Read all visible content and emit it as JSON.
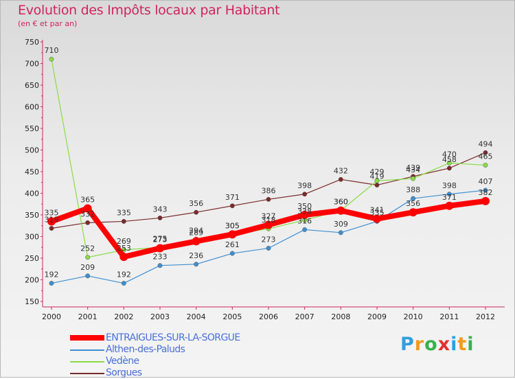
{
  "title": "Evolution des Impôts locaux par Habitant",
  "subtitle": "(en € et par an)",
  "logo": {
    "text": "Proxiti",
    "letters": [
      {
        "ch": "P",
        "color": "#2f9fe0"
      },
      {
        "ch": "r",
        "color": "#f29a1f"
      },
      {
        "ch": "o",
        "color": "#37b24d"
      },
      {
        "ch": "x",
        "color": "#e0312e"
      },
      {
        "ch": "i",
        "color": "#2f9fe0"
      },
      {
        "ch": "t",
        "color": "#f29a1f"
      },
      {
        "ch": "i",
        "color": "#37b24d"
      }
    ]
  },
  "chart_data": {
    "type": "line",
    "title": "Evolution des Impôts locaux par Habitant",
    "subtitle": "(en € et par an)",
    "categories": [
      "2000",
      "2001",
      "2002",
      "2003",
      "2004",
      "2005",
      "2006",
      "2007",
      "2008",
      "2009",
      "2010",
      "2011",
      "2012"
    ],
    "ylim": [
      150,
      750
    ],
    "yticks": [
      150,
      200,
      250,
      300,
      350,
      400,
      450,
      500,
      550,
      600,
      650,
      700,
      750
    ],
    "grid": false,
    "legend_placement": "bottom-left",
    "series": [
      {
        "name": "ENTRAIGUES-SUR-LA-SORGUE",
        "color": "#ff0000",
        "values": [
          335,
          365,
          253,
          273,
          289,
          305,
          327,
          350,
          360,
          341,
          356,
          371,
          382
        ],
        "labels": [
          "335",
          "365",
          "253",
          "273",
          "289",
          "305",
          "327",
          "350",
          "360",
          "341",
          "356",
          "371",
          "382"
        ]
      },
      {
        "name": "Althen-des-Paluds",
        "color": "#3f8fd0",
        "values": [
          192,
          209,
          192,
          233,
          236,
          261,
          273,
          316,
          309,
          335,
          388,
          398,
          407
        ],
        "labels": [
          "192",
          "209",
          "192",
          "233",
          "236",
          "261",
          "273",
          "316",
          "309",
          "335",
          "388",
          "398",
          "407"
        ]
      },
      {
        "name": "Vedène",
        "color": "#88dd44",
        "values": [
          710,
          252,
          269,
          275,
          294,
          305,
          318,
          338,
          360,
          429,
          434,
          470,
          465
        ],
        "labels": [
          "710",
          "252",
          "269",
          "275",
          "294",
          "305",
          "318",
          "338",
          "360",
          "429",
          "434",
          "470",
          "465"
        ]
      },
      {
        "name": "Sorgues",
        "color": "#7a2a2a",
        "values": [
          319,
          332,
          335,
          343,
          356,
          371,
          386,
          398,
          432,
          419,
          439,
          458,
          494
        ],
        "labels": [
          "319",
          "332",
          "335",
          "343",
          "356",
          "371",
          "386",
          "398",
          "432",
          "419",
          "439",
          "458",
          "494"
        ]
      }
    ]
  }
}
